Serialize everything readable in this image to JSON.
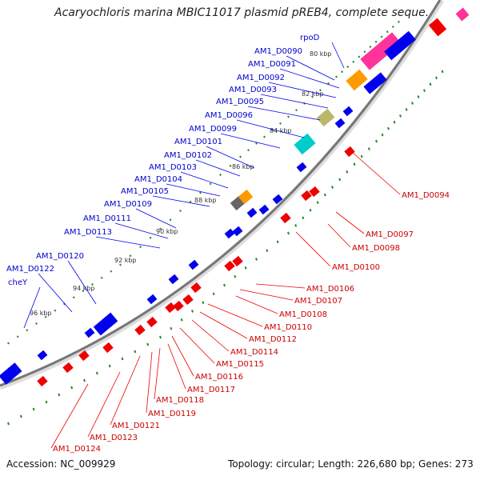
{
  "title": "Acaryochloris marina MBIC11017 plasmid pREB4, complete seque...",
  "footer": {
    "accession": "Accession: NC_009929",
    "summary": "Topology: circular; Length: 226,680 bp; Genes: 273"
  },
  "ticks": [
    "80 kbp",
    "82 kbp",
    "84 kbp",
    "86 kbp",
    "88 kbp",
    "90 kbp",
    "92 kbp",
    "94 kbp",
    "96 kbp"
  ],
  "forward_labels": [
    "rpoD",
    "AM1_D0090",
    "AM1_D0091",
    "AM1_D0092",
    "AM1_D0093",
    "AM1_D0095",
    "AM1_D0096",
    "AM1_D0099",
    "AM1_D0101",
    "AM1_D0102",
    "AM1_D0103",
    "AM1_D0104",
    "AM1_D0105",
    "AM1_D0109",
    "AM1_D0111",
    "AM1_D0113",
    "AM1_D0120",
    "AM1_D0122",
    "cheY"
  ],
  "reverse_labels": [
    "AM1_D0094",
    "AM1_D0097",
    "AM1_D0098",
    "AM1_D0100",
    "AM1_D0106",
    "AM1_D0107",
    "AM1_D0108",
    "AM1_D0110",
    "AM1_D0112",
    "AM1_D0114",
    "AM1_D0115",
    "AM1_D0116",
    "AM1_D0117",
    "AM1_D0118",
    "AM1_D0119",
    "AM1_D0121",
    "AM1_D0123",
    "AM1_D0124"
  ],
  "colors": {
    "forward": "#0000ee",
    "reverse": "#ee0000",
    "backbone": "#777777",
    "gc_ticks": "#228b22",
    "rpoD": "#ff3399",
    "orange": "#ff9900",
    "khaki": "#bdb76b",
    "cyan": "#00cccc",
    "gray": "#666666"
  }
}
